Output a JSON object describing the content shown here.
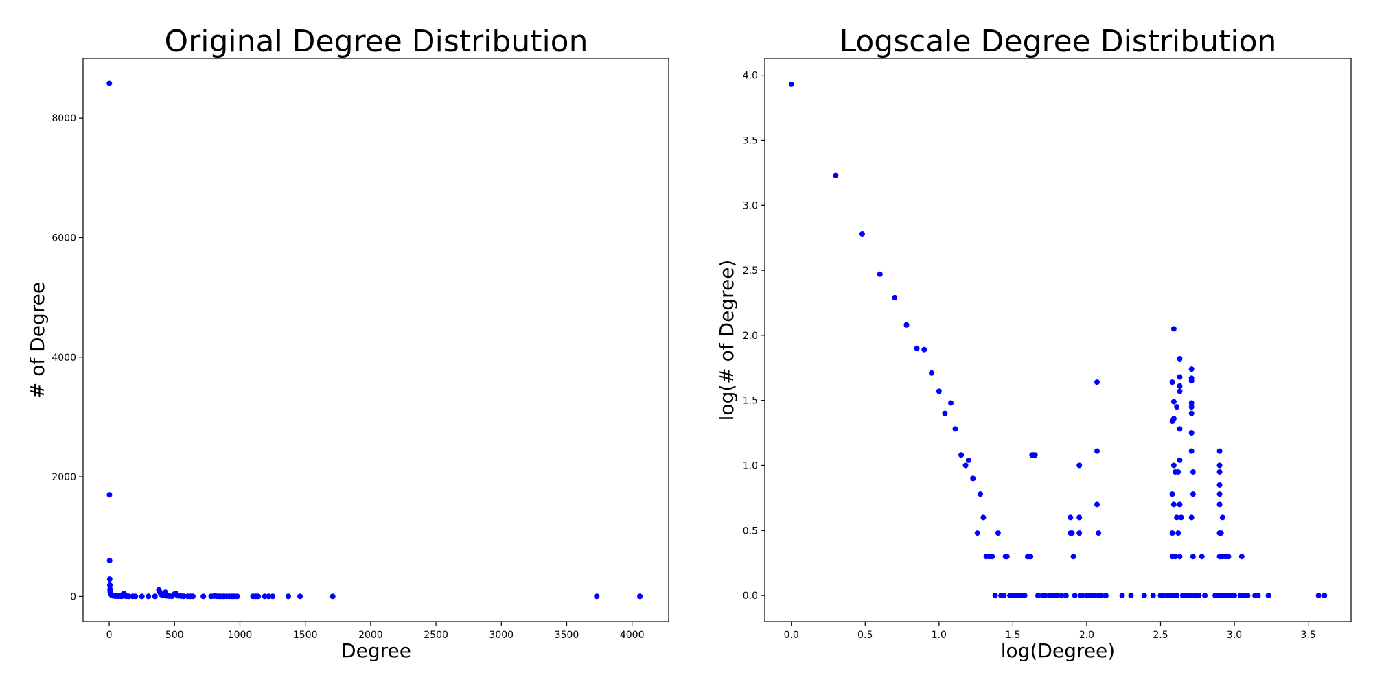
{
  "chart_data": [
    {
      "type": "scatter",
      "title": "Original Degree Distribution",
      "xlabel": "Degree",
      "ylabel": "# of Degree",
      "xlim": [
        -200,
        4280
      ],
      "ylim": [
        -420,
        9000
      ],
      "xticks": [
        0,
        500,
        1000,
        1500,
        2000,
        2500,
        3000,
        3500,
        4000
      ],
      "yticks": [
        0,
        2000,
        4000,
        6000,
        8000
      ],
      "grid": false,
      "color": "#0000ff",
      "x": [
        1,
        2,
        3,
        4,
        5,
        6,
        7,
        8,
        10,
        12,
        15,
        20,
        25,
        30,
        40,
        50,
        60,
        70,
        80,
        90,
        100,
        110,
        120,
        130,
        150,
        180,
        200,
        250,
        300,
        350,
        380,
        385,
        390,
        395,
        400,
        410,
        420,
        430,
        440,
        450,
        460,
        480,
        500,
        510,
        520,
        530,
        550,
        570,
        600,
        620,
        640,
        720,
        780,
        800,
        810,
        820,
        840,
        850,
        870,
        880,
        900,
        920,
        940,
        960,
        980,
        1100,
        1120,
        1140,
        1190,
        1220,
        1250,
        1370,
        1460,
        1710,
        3730,
        4060
      ],
      "y": [
        8580,
        1700,
        600,
        290,
        190,
        120,
        95,
        70,
        50,
        40,
        30,
        20,
        15,
        10,
        8,
        6,
        5,
        4,
        12,
        3,
        5,
        50,
        30,
        2,
        1,
        1,
        1,
        1,
        1,
        1,
        110,
        80,
        60,
        40,
        30,
        20,
        15,
        70,
        10,
        8,
        5,
        3,
        40,
        50,
        20,
        10,
        5,
        3,
        2,
        1,
        1,
        1,
        1,
        5,
        10,
        3,
        2,
        1,
        1,
        1,
        1,
        2,
        1,
        1,
        1,
        1,
        1,
        1,
        1,
        1,
        1,
        1,
        1,
        1,
        1,
        1
      ]
    },
    {
      "type": "scatter",
      "title": "Logscale Degree Distribution",
      "xlabel": "log(Degree)",
      "ylabel": "log(# of Degree)",
      "xlim": [
        -0.18,
        3.79
      ],
      "ylim": [
        -0.2,
        4.13
      ],
      "xticks": [
        0.0,
        0.5,
        1.0,
        1.5,
        2.0,
        2.5,
        3.0,
        3.5
      ],
      "yticks": [
        0.0,
        0.5,
        1.0,
        1.5,
        2.0,
        2.5,
        3.0,
        3.5,
        4.0
      ],
      "grid": false,
      "color": "#0000ff",
      "x": [
        0.0,
        0.3,
        0.48,
        0.6,
        0.7,
        0.78,
        0.85,
        0.9,
        0.95,
        1.0,
        1.04,
        1.08,
        1.11,
        1.15,
        1.18,
        1.2,
        1.23,
        1.26,
        1.28,
        1.3,
        1.32,
        1.34,
        1.36,
        1.38,
        1.4,
        1.42,
        1.44,
        1.45,
        1.46,
        1.48,
        1.5,
        1.52,
        1.54,
        1.56,
        1.58,
        1.6,
        1.61,
        1.62,
        1.63,
        1.64,
        1.65,
        1.67,
        1.7,
        1.72,
        1.75,
        1.78,
        1.8,
        1.83,
        1.86,
        1.89,
        1.89,
        1.9,
        1.91,
        1.92,
        1.95,
        1.95,
        1.95,
        1.96,
        1.97,
        2.0,
        2.02,
        2.05,
        2.07,
        2.07,
        2.07,
        2.08,
        2.08,
        2.1,
        2.13,
        2.24,
        2.3,
        2.39,
        2.45,
        2.5,
        2.52,
        2.55,
        2.57,
        2.58,
        2.58,
        2.58,
        2.58,
        2.58,
        2.59,
        2.59,
        2.59,
        2.59,
        2.59,
        2.59,
        2.6,
        2.6,
        2.61,
        2.61,
        2.61,
        2.62,
        2.62,
        2.63,
        2.63,
        2.63,
        2.63,
        2.63,
        2.63,
        2.63,
        2.63,
        2.64,
        2.65,
        2.66,
        2.67,
        2.68,
        2.69,
        2.7,
        2.71,
        2.71,
        2.71,
        2.71,
        2.71,
        2.71,
        2.71,
        2.71,
        2.71,
        2.72,
        2.72,
        2.72,
        2.73,
        2.74,
        2.75,
        2.76,
        2.78,
        2.8,
        2.87,
        2.89,
        2.9,
        2.9,
        2.9,
        2.9,
        2.9,
        2.9,
        2.9,
        2.9,
        2.9,
        2.91,
        2.91,
        2.92,
        2.92,
        2.92,
        2.93,
        2.94,
        2.95,
        2.96,
        2.97,
        2.98,
        3.0,
        3.04,
        3.05,
        3.06,
        3.07,
        3.09,
        3.14,
        3.16,
        3.23,
        3.57,
        3.61
      ],
      "y": [
        3.93,
        3.23,
        2.78,
        2.47,
        2.29,
        2.08,
        1.9,
        1.89,
        1.71,
        1.57,
        1.4,
        1.48,
        1.28,
        1.08,
        1.0,
        1.04,
        0.9,
        0.48,
        0.78,
        0.6,
        0.3,
        0.3,
        0.3,
        0.0,
        0.48,
        0.0,
        0.0,
        0.3,
        0.3,
        0.0,
        0.0,
        0.0,
        0.0,
        0.0,
        0.0,
        0.3,
        0.3,
        0.3,
        1.08,
        1.08,
        1.08,
        0.0,
        0.0,
        0.0,
        0.0,
        0.0,
        0.0,
        0.0,
        0.0,
        0.6,
        0.48,
        0.48,
        0.3,
        0.0,
        1.0,
        0.6,
        0.48,
        0.0,
        0.0,
        0.0,
        0.0,
        0.0,
        1.64,
        1.11,
        0.7,
        0.48,
        0.0,
        0.0,
        0.0,
        0.0,
        0.0,
        0.0,
        0.0,
        0.0,
        0.0,
        0.0,
        0.0,
        1.64,
        1.34,
        0.78,
        0.48,
        0.3,
        2.05,
        1.49,
        1.36,
        1.0,
        0.7,
        0.0,
        0.95,
        0.3,
        1.45,
        0.6,
        0.0,
        0.95,
        0.48,
        1.82,
        1.68,
        1.61,
        1.57,
        1.28,
        1.04,
        0.7,
        0.3,
        0.6,
        0.0,
        0.0,
        0.0,
        0.0,
        0.0,
        0.0,
        1.74,
        1.67,
        1.65,
        1.48,
        1.45,
        1.4,
        1.25,
        1.11,
        0.6,
        0.95,
        0.78,
        0.3,
        0.0,
        0.0,
        0.0,
        0.0,
        0.3,
        0.0,
        0.0,
        0.0,
        1.11,
        1.0,
        0.95,
        0.85,
        0.78,
        0.7,
        0.48,
        0.3,
        0.0,
        0.48,
        0.3,
        0.6,
        0.3,
        0.0,
        0.0,
        0.3,
        0.0,
        0.3,
        0.0,
        0.0,
        0.0,
        0.0,
        0.3,
        0.0,
        0.0,
        0.0,
        0.0,
        0.0,
        0.0,
        0.0,
        0.0
      ]
    }
  ]
}
